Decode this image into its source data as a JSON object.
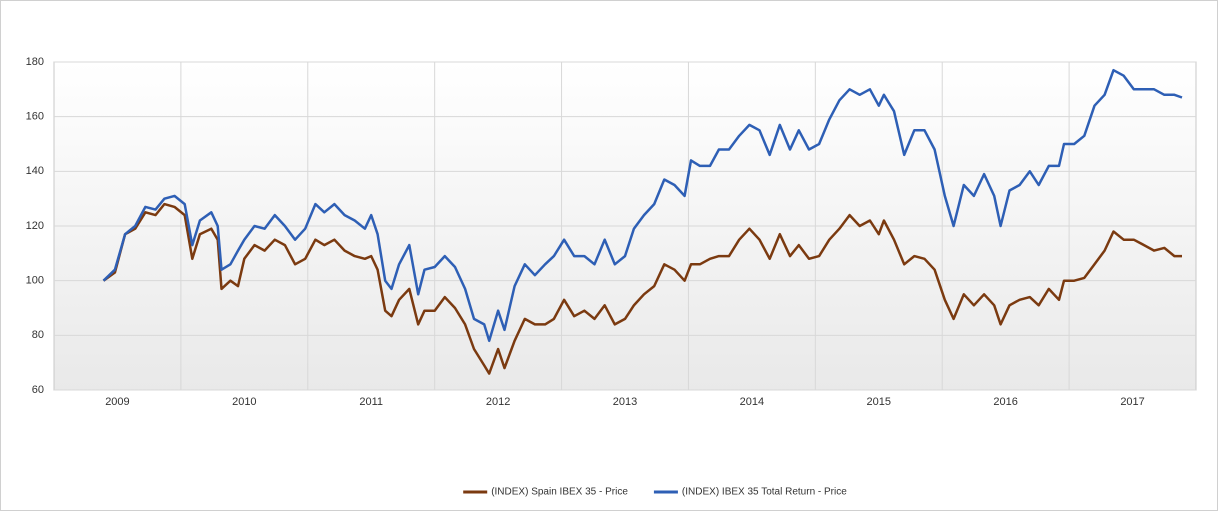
{
  "chart_data": {
    "type": "line",
    "x": [
      2009.39,
      2009.48,
      2009.56,
      2009.64,
      2009.72,
      2009.8,
      2009.87,
      2009.95,
      2010.03,
      2010.09,
      2010.15,
      2010.24,
      2010.29,
      2010.32,
      2010.39,
      2010.45,
      2010.5,
      2010.58,
      2010.66,
      2010.74,
      2010.82,
      2010.9,
      2010.98,
      2011.06,
      2011.13,
      2011.21,
      2011.29,
      2011.37,
      2011.45,
      2011.5,
      2011.55,
      2011.61,
      2011.66,
      2011.72,
      2011.8,
      2011.87,
      2011.92,
      2012.0,
      2012.08,
      2012.16,
      2012.24,
      2012.31,
      2012.39,
      2012.43,
      2012.5,
      2012.55,
      2012.63,
      2012.71,
      2012.79,
      2012.87,
      2012.94,
      2013.02,
      2013.1,
      2013.18,
      2013.26,
      2013.34,
      2013.42,
      2013.5,
      2013.57,
      2013.65,
      2013.73,
      2013.81,
      2013.89,
      2013.97,
      2014.02,
      2014.09,
      2014.17,
      2014.24,
      2014.32,
      2014.4,
      2014.48,
      2014.56,
      2014.64,
      2014.72,
      2014.8,
      2014.87,
      2014.95,
      2015.03,
      2015.11,
      2015.19,
      2015.27,
      2015.35,
      2015.43,
      2015.5,
      2015.54,
      2015.62,
      2015.7,
      2015.78,
      2015.86,
      2015.94,
      2016.02,
      2016.09,
      2016.17,
      2016.25,
      2016.33,
      2016.41,
      2016.46,
      2016.53,
      2016.61,
      2016.69,
      2016.76,
      2016.84,
      2016.92,
      2016.96,
      2017.04,
      2017.12,
      2017.2,
      2017.28,
      2017.35,
      2017.43,
      2017.51,
      2017.59,
      2017.67,
      2017.75,
      2017.83,
      2017.89
    ],
    "series": [
      {
        "name": "(INDEX) Spain IBEX 35 - Price",
        "color": "#7b3a10",
        "values": [
          100,
          103,
          117,
          119,
          125,
          124,
          128,
          127,
          124,
          108,
          117,
          119,
          115,
          97,
          100,
          98,
          108,
          113,
          111,
          115,
          113,
          106,
          108,
          115,
          113,
          115,
          111,
          109,
          108,
          109,
          104,
          89,
          87,
          93,
          97,
          84,
          89,
          89,
          94,
          90,
          84,
          75,
          69,
          66,
          75,
          68,
          78,
          86,
          84,
          84,
          86,
          93,
          87,
          89,
          86,
          91,
          84,
          86,
          91,
          95,
          98,
          106,
          104,
          100,
          106,
          106,
          108,
          109,
          109,
          115,
          119,
          115,
          108,
          117,
          109,
          113,
          108,
          109,
          115,
          119,
          124,
          120,
          122,
          117,
          122,
          115,
          106,
          109,
          108,
          104,
          93,
          86,
          95,
          91,
          95,
          91,
          84,
          91,
          93,
          94,
          91,
          97,
          93,
          100,
          100,
          101,
          106,
          111,
          118,
          115,
          115,
          113,
          111,
          112,
          109,
          109
        ]
      },
      {
        "name": "(INDEX) IBEX 35 Total Return - Price",
        "color": "#2e5fb5",
        "values": [
          100,
          104,
          117,
          120,
          127,
          126,
          130,
          131,
          128,
          113,
          122,
          125,
          120,
          104,
          106,
          111,
          115,
          120,
          119,
          124,
          120,
          115,
          119,
          128,
          125,
          128,
          124,
          122,
          119,
          124,
          117,
          100,
          97,
          106,
          113,
          95,
          104,
          105,
          109,
          105,
          97,
          86,
          84,
          78,
          89,
          82,
          98,
          106,
          102,
          106,
          109,
          115,
          109,
          109,
          106,
          115,
          106,
          109,
          119,
          124,
          128,
          137,
          135,
          131,
          144,
          142,
          142,
          148,
          148,
          153,
          157,
          155,
          146,
          157,
          148,
          155,
          148,
          150,
          159,
          166,
          170,
          168,
          170,
          164,
          168,
          162,
          146,
          155,
          155,
          148,
          131,
          120,
          135,
          131,
          139,
          131,
          120,
          133,
          135,
          140,
          135,
          142,
          142,
          150,
          150,
          153,
          164,
          168,
          177,
          175,
          170,
          170,
          170,
          168,
          168,
          167
        ]
      }
    ],
    "xlim": [
      2009,
      2018
    ],
    "xticks": [
      {
        "value": 2009.5,
        "label": "2009"
      },
      {
        "value": 2010.5,
        "label": "2010"
      },
      {
        "value": 2011.5,
        "label": "2011"
      },
      {
        "value": 2012.5,
        "label": "2012"
      },
      {
        "value": 2013.5,
        "label": "2013"
      },
      {
        "value": 2014.5,
        "label": "2014"
      },
      {
        "value": 2015.5,
        "label": "2015"
      },
      {
        "value": 2016.5,
        "label": "2016"
      },
      {
        "value": 2017.5,
        "label": "2017"
      }
    ],
    "ylim": [
      60,
      180
    ],
    "yticks": [
      60,
      80,
      100,
      120,
      140,
      160,
      180
    ],
    "grid": true,
    "legend": "bottom"
  }
}
